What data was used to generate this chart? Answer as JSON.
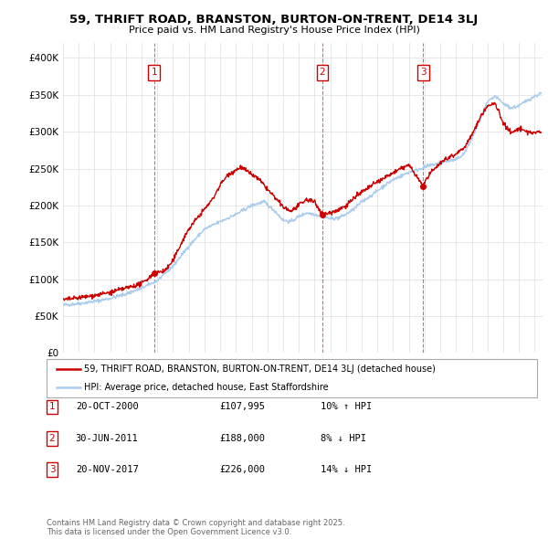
{
  "title": "59, THRIFT ROAD, BRANSTON, BURTON-ON-TRENT, DE14 3LJ",
  "subtitle": "Price paid vs. HM Land Registry's House Price Index (HPI)",
  "ylabel_ticks": [
    "£0",
    "£50K",
    "£100K",
    "£150K",
    "£200K",
    "£250K",
    "£300K",
    "£350K",
    "£400K"
  ],
  "ytick_vals": [
    0,
    50000,
    100000,
    150000,
    200000,
    250000,
    300000,
    350000,
    400000
  ],
  "ylim": [
    0,
    420000
  ],
  "xlim_start": 1995.0,
  "xlim_end": 2025.5,
  "sale_color": "#cc0000",
  "hpi_color": "#aaccee",
  "legend_sale": "59, THRIFT ROAD, BRANSTON, BURTON-ON-TRENT, DE14 3LJ (detached house)",
  "legend_hpi": "HPI: Average price, detached house, East Staffordshire",
  "transactions": [
    {
      "num": 1,
      "date_x": 2000.8,
      "price": 107995,
      "label": "20-OCT-2000",
      "amount": "£107,995",
      "pct": "10% ↑ HPI"
    },
    {
      "num": 2,
      "date_x": 2011.5,
      "price": 188000,
      "label": "30-JUN-2011",
      "amount": "£188,000",
      "pct": "8% ↓ HPI"
    },
    {
      "num": 3,
      "date_x": 2017.9,
      "price": 226000,
      "label": "20-NOV-2017",
      "amount": "£226,000",
      "pct": "14% ↓ HPI"
    }
  ],
  "footer": "Contains HM Land Registry data © Crown copyright and database right 2025.\nThis data is licensed under the Open Government Licence v3.0.",
  "background_color": "#ffffff",
  "grid_color": "#dddddd"
}
